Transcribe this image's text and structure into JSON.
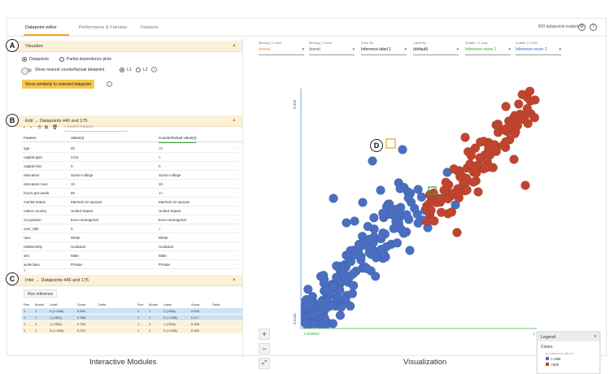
{
  "tabs": [
    "Datapoint editor",
    "Performance & Fairness",
    "Features"
  ],
  "header_status": "500 datapoints loaded",
  "visualize": {
    "title": "Visualize",
    "marker": "A",
    "opt_datapoints": "Datapoints",
    "opt_pdp": "Partial dependence plots",
    "nearest_label": "Show nearest counterfactual datapoint",
    "l1": "L1",
    "l2": "L2",
    "similarity_button": "Show similarity to selected datapoint"
  },
  "edit": {
    "title": "Edit → Datapoints 446 and 175",
    "marker": "B",
    "search_placeholder": "Search features",
    "col_feature": "Feature",
    "col_value": "Value(s)",
    "col_cf": "Counterfactual value(s)",
    "rows": [
      {
        "f": "age",
        "v": "40",
        "c": "36",
        "g": true
      },
      {
        "f": "capital-gain",
        "v": "2411",
        "c": "0",
        "g": true
      },
      {
        "f": "capital-loss",
        "v": "0",
        "c": "0",
        "g": false
      },
      {
        "f": "education",
        "v": "Some-college",
        "c": "Some-college",
        "g": false
      },
      {
        "f": "education-num",
        "v": "10",
        "c": "10",
        "g": false
      },
      {
        "f": "hours-per-week",
        "v": "50",
        "c": "40",
        "g": true
      },
      {
        "f": "marital-status",
        "v": "Married-civ-spouse",
        "c": "Married-civ-spouse",
        "g": false
      },
      {
        "f": "native-country",
        "v": "United-States",
        "c": "United-States",
        "g": false
      },
      {
        "f": "occupation",
        "v": "Exec-managerial",
        "c": "Exec-managerial",
        "g": false
      },
      {
        "f": "over_50k",
        "v": "0",
        "c": "1",
        "g": true
      },
      {
        "f": "race",
        "v": "White",
        "c": "White",
        "g": false
      },
      {
        "f": "relationship",
        "v": "Husband",
        "c": "Husband",
        "g": false
      },
      {
        "f": "sex",
        "v": "Male",
        "c": "Male",
        "g": false
      },
      {
        "f": "workclass",
        "v": "Private",
        "c": "Private",
        "g": false
      }
    ],
    "add": "+"
  },
  "infer": {
    "title": "Infer → Datapoints 446 and 175",
    "marker": "C",
    "button": "Run inference",
    "headers": [
      "Run",
      "Model",
      "Label",
      "Score",
      "Delta"
    ],
    "left": [
      [
        "1",
        "1",
        "0 (<=50k)",
        "0.490",
        ""
      ],
      [
        "1",
        "1",
        "1 (>50k)",
        "0.398",
        ""
      ],
      [
        "1",
        "2",
        "1 (>50k)",
        "0.754",
        ""
      ],
      [
        "1",
        "2",
        "0 (<=50k)",
        "0.223",
        ""
      ]
    ],
    "right": [
      [
        "1",
        "1",
        "1 (>50k)",
        "0.525",
        ""
      ],
      [
        "1",
        "1",
        "0 (<=50k)",
        "0.477",
        ""
      ],
      [
        "1",
        "2",
        "1 (>50k)",
        "0.538",
        ""
      ],
      [
        "1",
        "2",
        "0 (<=50k)",
        "0.460",
        ""
      ]
    ]
  },
  "controls": [
    {
      "label": "Binning | X-Axis",
      "value": "(none)",
      "color": "#e8872a"
    },
    {
      "label": "Binning | Y-Axis",
      "value": "(none)",
      "color": "#555555"
    },
    {
      "label": "Color By",
      "value": "Inference label 1",
      "color": "#222222"
    },
    {
      "label": "Label By",
      "value": "(default)",
      "color": "#222222"
    },
    {
      "label": "Scatter | X-Axis",
      "value": "Inference score 1",
      "color": "#3aa43a"
    },
    {
      "label": "Scatter | Y-Axis",
      "value": "Inference score 2",
      "color": "#3b5fc4"
    }
  ],
  "plot": {
    "marker": "D",
    "x_min": "0.000603",
    "x_max": "1",
    "y_min": "0.0166",
    "y_max": "0.993"
  },
  "legend": {
    "title": "Legend",
    "colors": "Colors",
    "by": "by Inference label 1",
    "items": [
      {
        "label": "<=50k",
        "color": "#4a6fc1"
      },
      {
        "label": ">50k",
        "color": "#c0452f"
      }
    ]
  },
  "captions": {
    "left": "Interactive Modules",
    "right": "Visualization"
  },
  "colors": {
    "blue": "#4a6fc1",
    "red": "#c0452f",
    "accent": "#f5a623"
  }
}
